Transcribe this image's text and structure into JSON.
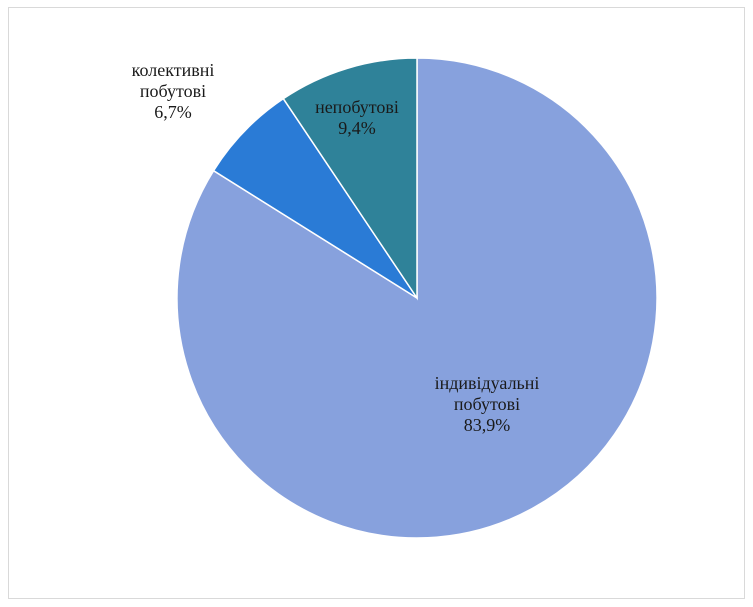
{
  "chart_data": {
    "type": "pie",
    "start_angle_deg": 0,
    "direction": "clockwise",
    "slices": [
      {
        "lines": [
          "індивідуальні",
          "побутові",
          "83,9%"
        ],
        "value": 83.9,
        "color": "#87a1dd"
      },
      {
        "lines": [
          "колективні",
          "побутові",
          "6,7%"
        ],
        "value": 6.7,
        "color": "#2a7bd6"
      },
      {
        "lines": [
          "непобутові",
          "9,4%"
        ],
        "value": 9.4,
        "color": "#2f8299"
      }
    ]
  }
}
